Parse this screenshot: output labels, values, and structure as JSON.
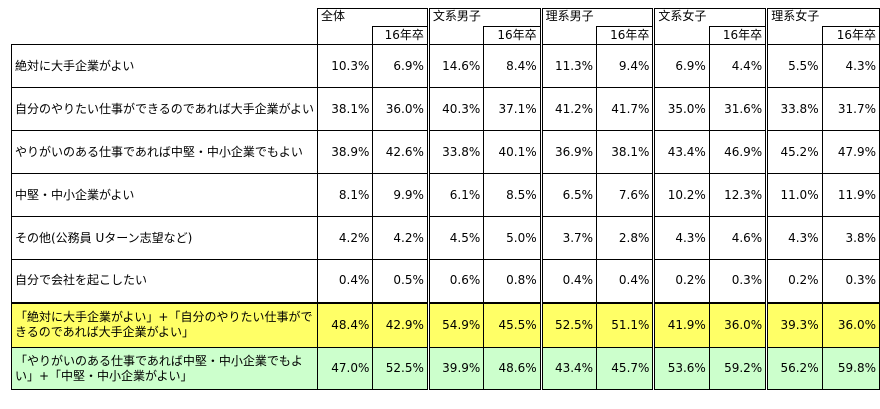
{
  "groups": [
    {
      "label": "全体",
      "sub": "16年卒"
    },
    {
      "label": "文系男子",
      "sub": "16年卒"
    },
    {
      "label": "理系男子",
      "sub": "16年卒"
    },
    {
      "label": "文系女子",
      "sub": "16年卒"
    },
    {
      "label": "理系女子",
      "sub": "16年卒"
    }
  ],
  "rows": [
    {
      "label": "絶対に大手企業がよい",
      "values": [
        "10.3%",
        "6.9%",
        "14.6%",
        "8.4%",
        "11.3%",
        "9.4%",
        "6.9%",
        "4.4%",
        "5.5%",
        "4.3%"
      ]
    },
    {
      "label": "自分のやりたい仕事ができるのであれば大手企業がよい",
      "values": [
        "38.1%",
        "36.0%",
        "40.3%",
        "37.1%",
        "41.2%",
        "41.7%",
        "35.0%",
        "31.6%",
        "33.8%",
        "31.7%"
      ]
    },
    {
      "label": "やりがいのある仕事であれば中堅・中小企業でもよい",
      "values": [
        "38.9%",
        "42.6%",
        "33.8%",
        "40.1%",
        "36.9%",
        "38.1%",
        "43.4%",
        "46.9%",
        "45.2%",
        "47.9%"
      ]
    },
    {
      "label": "中堅・中小企業がよい",
      "values": [
        "8.1%",
        "9.9%",
        "6.1%",
        "8.5%",
        "6.5%",
        "7.6%",
        "10.2%",
        "12.3%",
        "11.0%",
        "11.9%"
      ]
    },
    {
      "label": "その他(公務員 Uターン志望など)",
      "values": [
        "4.2%",
        "4.2%",
        "4.5%",
        "5.0%",
        "3.7%",
        "2.8%",
        "4.3%",
        "4.6%",
        "4.3%",
        "3.8%"
      ]
    },
    {
      "label": "自分で会社を起こしたい",
      "values": [
        "0.4%",
        "0.5%",
        "0.6%",
        "0.8%",
        "0.4%",
        "0.4%",
        "0.2%",
        "0.3%",
        "0.2%",
        "0.3%"
      ]
    }
  ],
  "summary_rows": [
    {
      "label": "「絶対に大手企業がよい」+「自分のやりたい仕事ができるのであれば大手企業がよい」",
      "color": "#ffff66",
      "values": [
        "48.4%",
        "42.9%",
        "54.9%",
        "45.5%",
        "52.5%",
        "51.1%",
        "41.9%",
        "36.0%",
        "39.3%",
        "36.0%"
      ]
    },
    {
      "label": "「やりがいのある仕事であれば中堅・中小企業でもよい」+「中堅・中小企業がよい」",
      "color": "#ccffcc",
      "values": [
        "47.0%",
        "52.5%",
        "39.9%",
        "48.6%",
        "43.4%",
        "45.7%",
        "53.6%",
        "59.2%",
        "56.2%",
        "59.8%"
      ]
    }
  ]
}
